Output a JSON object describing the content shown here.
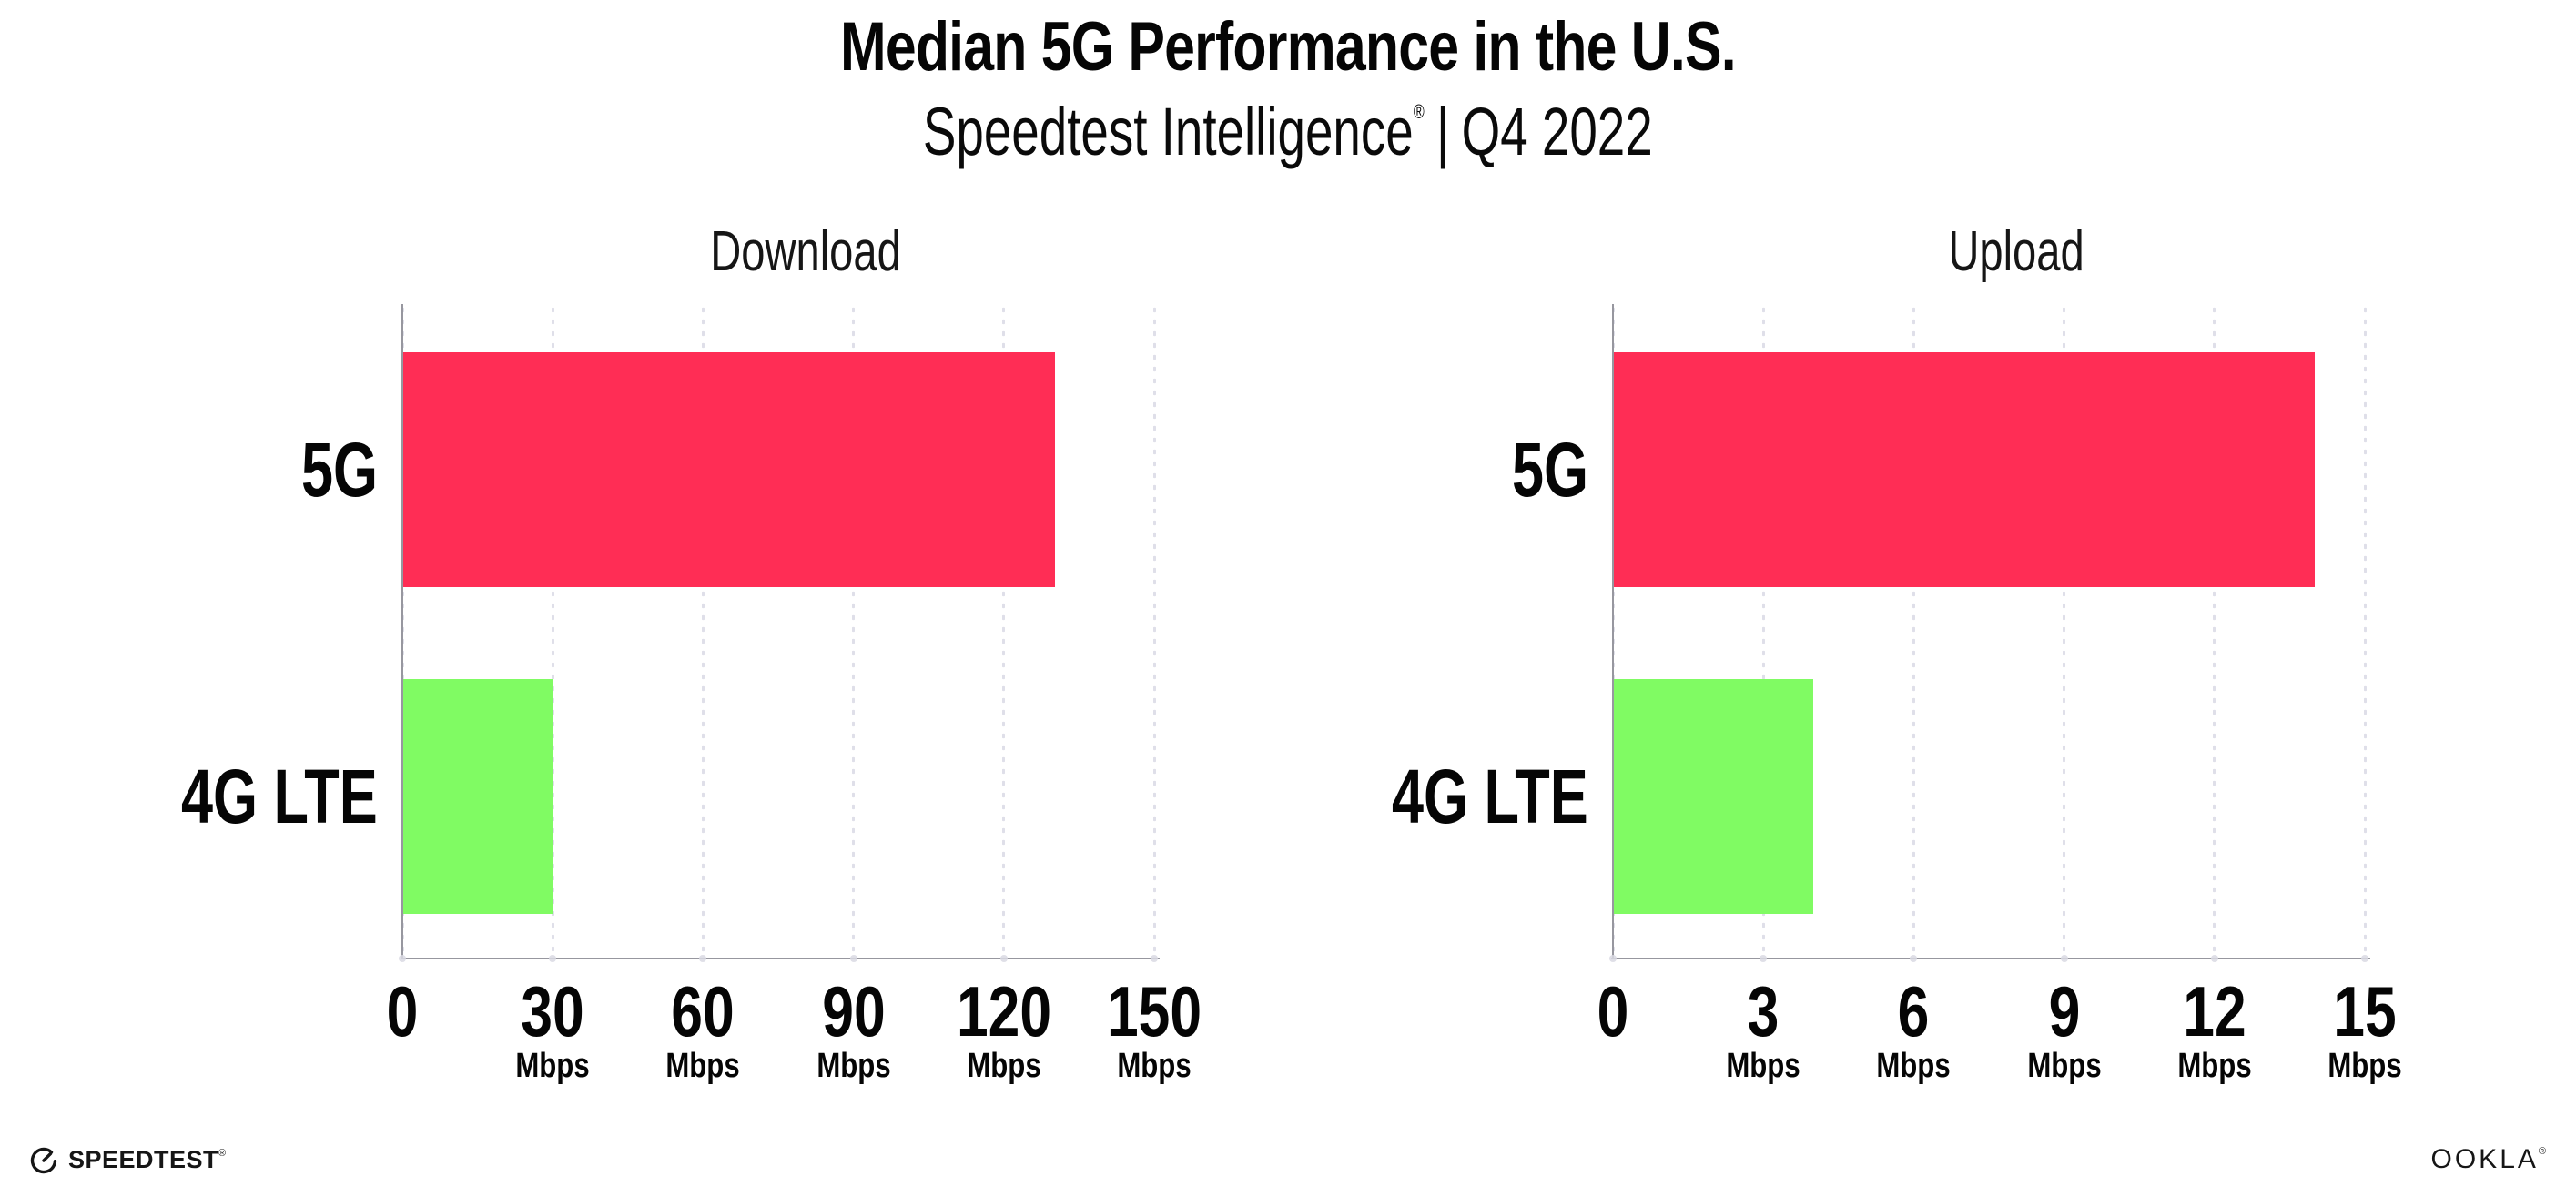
{
  "header": {
    "title": "Median 5G Performance in the U.S.",
    "subtitle": {
      "brand": "Speedtest Intelligence",
      "mark": "®",
      "divider": "|",
      "qualifier": "Q4 2022"
    }
  },
  "chart_data": [
    {
      "type": "bar",
      "orientation": "horizontal",
      "title": "Download",
      "categories": [
        "5G",
        "4G LTE"
      ],
      "values": [
        130.2,
        30.2
      ],
      "colors": [
        "#FF2D55",
        "#80FB63"
      ],
      "unit": "Mbps",
      "xlabel": "",
      "ylabel": "",
      "xlim": [
        0,
        150
      ],
      "xticks": [
        0,
        30,
        60,
        90,
        120,
        150
      ],
      "grid": "dotted-vertical-major",
      "legend": "none"
    },
    {
      "type": "bar",
      "orientation": "horizontal",
      "title": "Upload",
      "categories": [
        "5G",
        "4G LTE"
      ],
      "values": [
        14.0,
        4.0
      ],
      "colors": [
        "#FF2D55",
        "#80FB63"
      ],
      "unit": "Mbps",
      "xlabel": "",
      "ylabel": "",
      "xlim": [
        0,
        15
      ],
      "xticks": [
        0,
        3,
        6,
        9,
        12,
        15
      ],
      "grid": "dotted-vertical-major",
      "legend": "none"
    }
  ],
  "footer": {
    "speedtest": {
      "label": "SPEEDTEST",
      "mark": "®"
    },
    "ookla": {
      "label": "OOKLA",
      "mark": "®"
    }
  },
  "icons": {
    "speedtest_gauge": "gauge-circle-with-needle"
  },
  "colors": {
    "bar_5g": "#FF2D55",
    "bar_4g_lte": "#80FB63",
    "axis_line": "#97979f",
    "grid_dot": "#dfdfe9",
    "text": "#050505",
    "background": "#ffffff"
  }
}
